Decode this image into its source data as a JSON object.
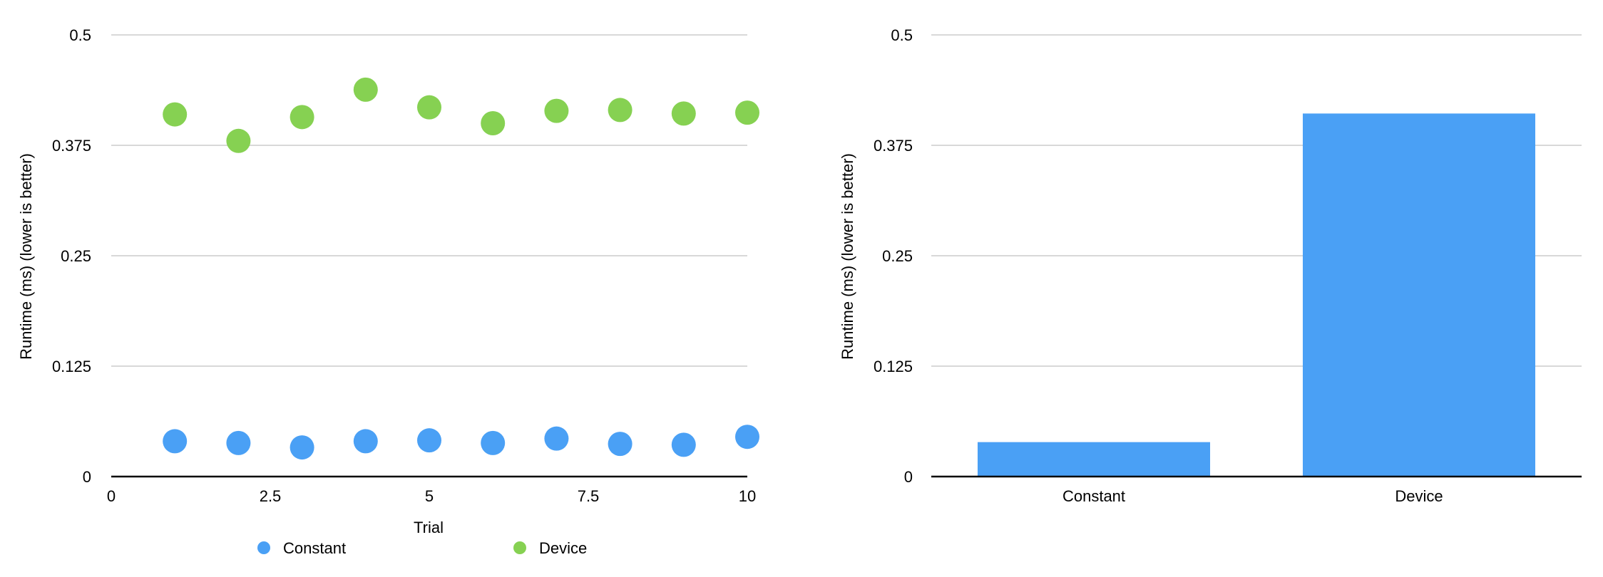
{
  "chart_data": [
    {
      "type": "scatter",
      "xlabel": "Trial",
      "ylabel": "Runtime (ms) (lower is better)",
      "xlim": [
        0,
        10
      ],
      "ylim": [
        0,
        0.5
      ],
      "x_ticks": [
        "0",
        "2.5",
        "5",
        "7.5",
        "10"
      ],
      "y_ticks": [
        "0",
        "0.125",
        "0.25",
        "0.375",
        "0.5"
      ],
      "grid": true,
      "legend_position": "bottom",
      "series": [
        {
          "name": "Constant",
          "color": "#4aa0f5",
          "x": [
            1,
            2,
            3,
            4,
            5,
            6,
            7,
            8,
            9,
            10
          ],
          "y": [
            0.04,
            0.038,
            0.033,
            0.04,
            0.041,
            0.038,
            0.043,
            0.037,
            0.036,
            0.045
          ]
        },
        {
          "name": "Device",
          "color": "#86d152",
          "x": [
            1,
            2,
            3,
            4,
            5,
            6,
            7,
            8,
            9,
            10
          ],
          "y": [
            0.41,
            0.38,
            0.407,
            0.438,
            0.418,
            0.4,
            0.414,
            0.415,
            0.411,
            0.412
          ]
        }
      ]
    },
    {
      "type": "bar",
      "ylabel": "Runtime (ms) (lower is better)",
      "ylim": [
        0,
        0.5
      ],
      "y_ticks": [
        "0",
        "0.125",
        "0.25",
        "0.375",
        "0.5"
      ],
      "grid": true,
      "categories": [
        "Constant",
        "Device"
      ],
      "values": [
        0.039,
        0.411
      ],
      "color": "#4aa0f5"
    }
  ]
}
